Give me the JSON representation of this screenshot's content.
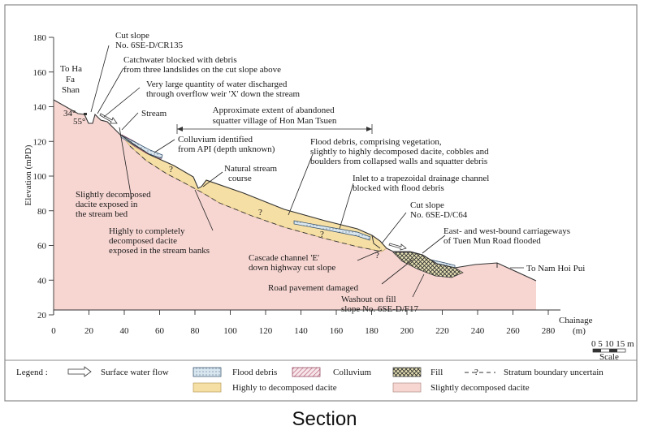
{
  "caption": "Section",
  "axes": {
    "y_label": "Elevation (mPD)",
    "x_label_1": "Chainage",
    "x_label_2": "(m)",
    "y_ticks": [
      "20",
      "40",
      "60",
      "80",
      "100",
      "120",
      "140",
      "160",
      "180"
    ],
    "x_ticks": [
      "0",
      "20",
      "40",
      "60",
      "80",
      "100",
      "120",
      "140",
      "160",
      "180",
      "200",
      "220",
      "240",
      "260",
      "280"
    ]
  },
  "scale": {
    "numbers": "0  5 10 15 m",
    "label": "Scale"
  },
  "angles": {
    "a1": "34°",
    "a2": "55°"
  },
  "annotations": {
    "to_ha_fa_shan": [
      "To Ha",
      "Fa",
      "Shan"
    ],
    "cut_slope_cr135": [
      "Cut slope",
      "No. 6SE-D/CR135"
    ],
    "catchwater": [
      "Catchwater blocked with debris",
      "from three landslides on the cut slope above"
    ],
    "water_discharge": [
      "Very large quantity of water discharged",
      "through overflow weir 'X' down the stream"
    ],
    "stream": "Stream",
    "abandoned_village": [
      "Approximate extent of abandoned",
      "squatter village of Hon Man Tsuen"
    ],
    "colluvium_api": [
      "Colluvium identified",
      "from API (depth unknown)"
    ],
    "natural_stream": [
      "Natural stream",
      "course"
    ],
    "slightly_decomposed_bed": [
      "Slightly decomposed",
      "dacite exposed in",
      "the stream bed"
    ],
    "highly_completely": [
      "Highly to completely",
      "decomposed dacite",
      "exposed in the stream banks"
    ],
    "flood_debris_desc": [
      "Flood debris, comprising vegetation,",
      "slightly to highly decomposed dacite, cobbles and",
      "boulders from collapsed walls and squatter debris"
    ],
    "inlet": [
      "Inlet to a trapezoidal drainage channel",
      "blocked with flood debris"
    ],
    "cut_slope_c64": [
      "Cut slope",
      "No. 6SE-D/C64"
    ],
    "carriageways": [
      "East- and west-bound carriageways",
      "of Tuen Mun Road flooded"
    ],
    "to_nam_hoi_pui": "To Nam Hoi Pui",
    "cascade": [
      "Cascade channel 'E'",
      "down highway cut slope"
    ],
    "road_pavement": "Road pavement damaged",
    "washout": [
      "Washout on fill",
      "slope No. 6SE-D/F17"
    ]
  },
  "legend": {
    "title": "Legend :",
    "items": [
      {
        "label": "Surface water flow",
        "swatch": "arrow"
      },
      {
        "label": "Flood debris",
        "swatch": "#d8e6f0"
      },
      {
        "label": "Colluvium",
        "swatch": "hatch"
      },
      {
        "label": "Fill",
        "swatch": "crosshatch"
      },
      {
        "label": "Stratum boundary uncertain",
        "swatch": "dashed"
      },
      {
        "label": "Highly to decomposed dacite",
        "swatch": "#f6dfa4"
      },
      {
        "label": "Slightly decomposed dacite",
        "swatch": "#f7d6d2"
      }
    ]
  },
  "colors": {
    "slightly_decomposed": "#f7d6d2",
    "highly_decomposed": "#f6dfa4",
    "flood_debris": "#d8e6f0",
    "border": "#8a8a8a"
  }
}
